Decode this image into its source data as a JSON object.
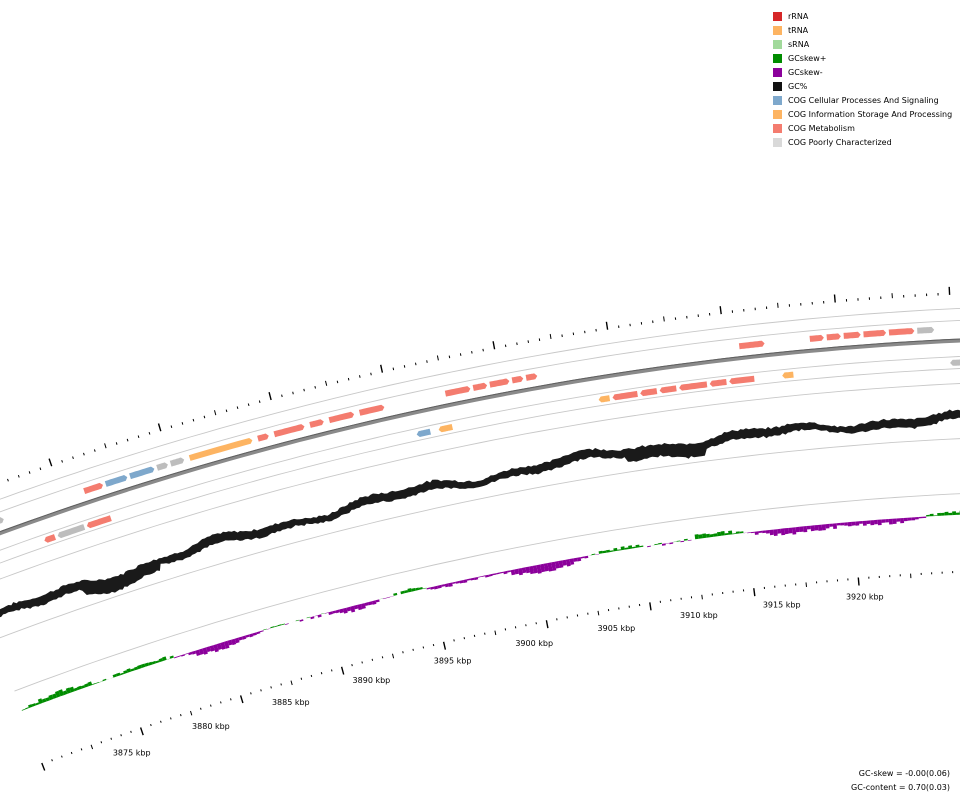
{
  "legend": [
    {
      "label": "rRNA",
      "color": "#d62728"
    },
    {
      "label": "tRNA",
      "color": "#fdb462"
    },
    {
      "label": "sRNA",
      "color": "#a1d99b"
    },
    {
      "label": "GCskew+",
      "color": "#008c00"
    },
    {
      "label": "GCskew-",
      "color": "#8b009b"
    },
    {
      "label": "GC%",
      "color": "#111111"
    },
    {
      "label": "COG Cellular Processes And Signaling",
      "color": "#7ea8cc"
    },
    {
      "label": "COG Information Storage And Processing",
      "color": "#fdb462"
    },
    {
      "label": "COG Metabolism",
      "color": "#f47c6f"
    },
    {
      "label": "COG Poorly Characterized",
      "color": "#d9d9d9"
    }
  ],
  "axis": {
    "unit": "kbp",
    "labels": [
      "3875 kbp",
      "3880 kbp",
      "3885 kbp",
      "3890 kbp",
      "3895 kbp",
      "3900 kbp",
      "3905 kbp",
      "3910 kbp",
      "3915 kbp",
      "3920 kbp"
    ]
  },
  "stats": {
    "gc_skew": "GC-skew = -0.00(0.06)",
    "gc_content": "GC-content = 0.70(0.03)"
  }
}
